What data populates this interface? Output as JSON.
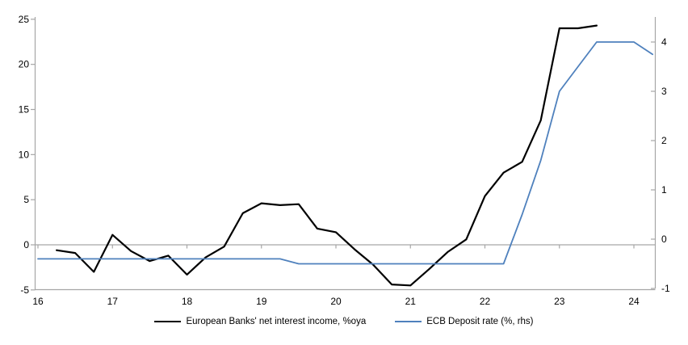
{
  "chart_data": {
    "type": "line",
    "title": "",
    "x_axis": {
      "ticks": [
        "16",
        "17",
        "18",
        "19",
        "20",
        "21",
        "22",
        "23",
        "24"
      ],
      "tick_values": [
        16,
        17,
        18,
        19,
        20,
        21,
        22,
        23,
        24
      ],
      "range": [
        16,
        24.3
      ],
      "unit": "year (20xx)"
    },
    "left_axis": {
      "ticks": [
        "-5",
        "0",
        "5",
        "10",
        "15",
        "20",
        "25"
      ],
      "tick_values": [
        -5,
        0,
        5,
        10,
        15,
        20,
        25
      ],
      "range": [
        -5,
        25
      ]
    },
    "right_axis": {
      "ticks": [
        "-1",
        "0",
        "1",
        "2",
        "3",
        "4"
      ],
      "tick_values": [
        -1,
        0,
        1,
        2,
        3,
        4
      ],
      "range": [
        -1,
        4.5
      ]
    },
    "grid": {
      "zero_line_shown": true,
      "other_gridlines": false
    },
    "legend_position": "bottom-center",
    "series": [
      {
        "name": "European Banks' net interest income, %oya",
        "axis": "left",
        "color": "#000000",
        "x": [
          16.25,
          16.5,
          16.75,
          17,
          17.25,
          17.5,
          17.75,
          18,
          18.25,
          18.5,
          18.75,
          19,
          19.25,
          19.5,
          19.75,
          20,
          20.25,
          20.5,
          20.75,
          21,
          21.25,
          21.5,
          21.75,
          22,
          22.25,
          22.5,
          22.75,
          23,
          23.25,
          23.5
        ],
        "values": [
          -0.6,
          -0.9,
          -3.0,
          1.1,
          -0.7,
          -1.8,
          -1.2,
          -3.3,
          -1.4,
          -0.2,
          3.5,
          4.6,
          4.4,
          4.5,
          1.8,
          1.4,
          -0.5,
          -2.2,
          -4.4,
          -4.5,
          -2.7,
          -0.8,
          0.6,
          5.4,
          8.0,
          9.2,
          13.8,
          24.0,
          24.0,
          24.3
        ]
      },
      {
        "name": "ECB Deposit rate (%, rhs)",
        "axis": "right",
        "color": "#4F81BD",
        "x": [
          16,
          16.25,
          16.5,
          16.75,
          17,
          17.25,
          17.5,
          17.75,
          18,
          18.25,
          18.5,
          18.75,
          19,
          19.25,
          19.5,
          19.75,
          20,
          20.25,
          20.5,
          20.75,
          21,
          21.25,
          21.5,
          21.75,
          22,
          22.25,
          22.5,
          22.75,
          23,
          23.25,
          23.5,
          23.75,
          24,
          24.25
        ],
        "values": [
          -0.4,
          -0.4,
          -0.4,
          -0.4,
          -0.4,
          -0.4,
          -0.4,
          -0.4,
          -0.4,
          -0.4,
          -0.4,
          -0.4,
          -0.4,
          -0.4,
          -0.5,
          -0.5,
          -0.5,
          -0.5,
          -0.5,
          -0.5,
          -0.5,
          -0.5,
          -0.5,
          -0.5,
          -0.5,
          -0.5,
          0.5,
          1.6,
          3.0,
          3.5,
          4.0,
          4.0,
          4.0,
          3.75
        ]
      }
    ]
  },
  "colors": {
    "background": "#FFFFFF",
    "axis_line": "#A6A6A6",
    "zero_line": "#A6A6A6",
    "tick_text": "#000000"
  }
}
